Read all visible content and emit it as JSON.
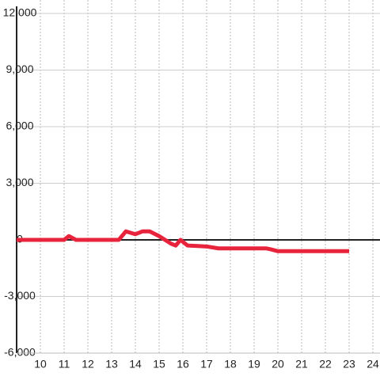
{
  "chart_data": {
    "type": "line",
    "x": [
      9,
      11,
      11.2,
      11.5,
      13.3,
      13.6,
      14,
      14.3,
      14.6,
      15,
      15.5,
      15.7,
      15.9,
      16.2,
      17,
      17.5,
      19.5,
      19.7,
      20,
      23
    ],
    "series": [
      {
        "color": "#e8243c",
        "values": [
          0,
          0,
          200,
          0,
          0,
          450,
          300,
          450,
          450,
          200,
          -200,
          -300,
          0,
          -300,
          -350,
          -450,
          -450,
          -500,
          -600,
          -600
        ]
      }
    ],
    "xlim": [
      9,
      24.3
    ],
    "xticks": [
      10,
      11,
      12,
      13,
      14,
      15,
      16,
      17,
      18,
      19,
      20,
      21,
      22,
      23,
      24
    ],
    "ylim": [
      -6000,
      12000
    ],
    "yticks": [
      {
        "value": -6000,
        "label": "-6,000"
      },
      {
        "value": -3000,
        "label": "-3,000"
      },
      0,
      {
        "value": 3000,
        "label": "3,000"
      },
      {
        "value": 6000,
        "label": "6,000"
      },
      {
        "value": 9000,
        "label": "9,000"
      },
      {
        "value": 12000,
        "label": "12,000"
      }
    ],
    "grid": true
  }
}
